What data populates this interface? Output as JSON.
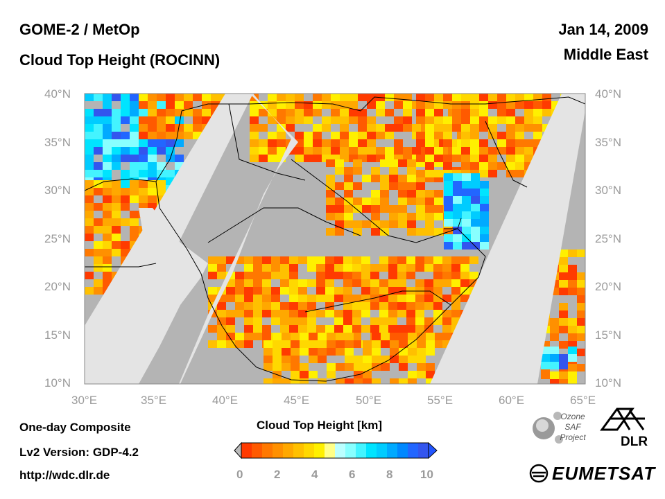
{
  "header": {
    "instrument": "GOME-2 / MetOp",
    "product": "Cloud Top Height (ROCINN)",
    "date": "Jan 14, 2009",
    "region": "Middle East"
  },
  "footer": {
    "composite": "One-day Composite",
    "version": "Lv2 Version: GDP-4.2",
    "url": "http://wdc.dlr.de"
  },
  "map": {
    "lat_labels": [
      "40°N",
      "35°N",
      "30°N",
      "25°N",
      "20°N",
      "15°N",
      "10°N"
    ],
    "lon_labels": [
      "30°E",
      "35°E",
      "40°E",
      "45°E",
      "50°E",
      "55°E",
      "60°E",
      "65°E"
    ],
    "lat_range": [
      10,
      40
    ],
    "lon_range": [
      30,
      65
    ],
    "colors": {
      "no_data_swath": "#b4b4b4",
      "swath_gap": "#e4e4e4",
      "coastline": "#000000"
    }
  },
  "colorbar": {
    "title": "Cloud Top Height [km]",
    "ticks": [
      "0",
      "2",
      "4",
      "6",
      "8",
      "10"
    ],
    "range": [
      0,
      10
    ],
    "colors": [
      "#ff3a00",
      "#ff5a00",
      "#ff7800",
      "#ff9000",
      "#ffa800",
      "#ffc000",
      "#ffd800",
      "#fff000",
      "#ffff88",
      "#bbffff",
      "#88ffff",
      "#44f4ff",
      "#00e4ff",
      "#00ccff",
      "#00aaff",
      "#0088ff",
      "#2266ff",
      "#3355ee"
    ]
  },
  "logos": {
    "ozone_saf": [
      "Ozone",
      "SAF",
      "Project"
    ],
    "dlr": "DLR",
    "eumetsat": "EUMETSAT"
  }
}
